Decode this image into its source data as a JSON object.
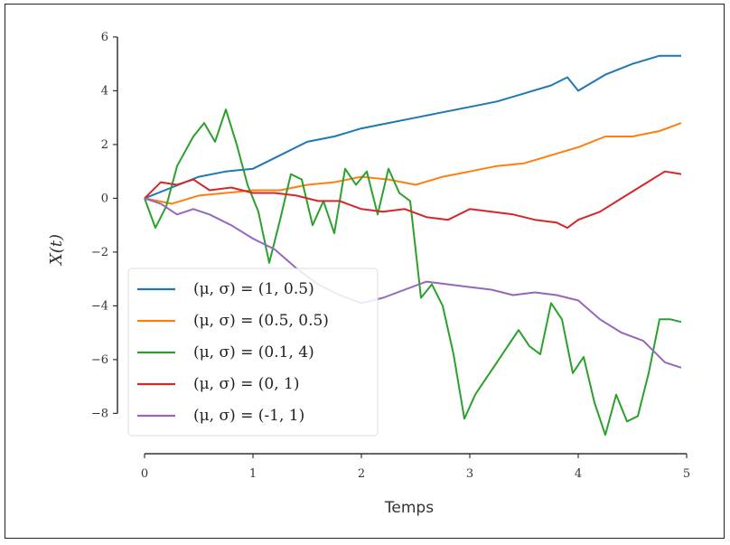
{
  "chart_data": {
    "type": "line",
    "title": "",
    "xlabel": "Temps",
    "ylabel": "X(t)",
    "xlim": [
      -0.25,
      5.15
    ],
    "ylim": [
      -9.5,
      6.3
    ],
    "xticks": [
      0,
      1,
      2,
      3,
      4,
      5
    ],
    "xtick_labels": [
      "0",
      "1",
      "2",
      "3",
      "4",
      "5"
    ],
    "yticks": [
      6,
      4,
      2,
      0,
      -2,
      -4,
      -6,
      -8
    ],
    "ytick_labels": [
      "6",
      "4",
      "2",
      "0",
      "−2",
      "−4",
      "−6",
      "−8"
    ],
    "grid": false,
    "legend_position": "lower-left",
    "series": [
      {
        "name": "(μ, σ) = (1, 0.5)",
        "color": "#1f77b4",
        "x": [
          0,
          0.25,
          0.5,
          0.75,
          1.0,
          1.25,
          1.5,
          1.75,
          2.0,
          2.25,
          2.5,
          2.75,
          3.0,
          3.25,
          3.5,
          3.75,
          3.9,
          4.0,
          4.25,
          4.5,
          4.75,
          4.95
        ],
        "y": [
          0,
          0.4,
          0.8,
          1.0,
          1.1,
          1.6,
          2.1,
          2.3,
          2.6,
          2.8,
          3.0,
          3.2,
          3.4,
          3.6,
          3.9,
          4.2,
          4.5,
          4.0,
          4.6,
          5.0,
          5.3,
          5.3
        ]
      },
      {
        "name": "(μ, σ) = (0.5, 0.5)",
        "color": "#ff7f0e",
        "x": [
          0,
          0.25,
          0.5,
          0.75,
          1.0,
          1.25,
          1.5,
          1.75,
          2.0,
          2.25,
          2.5,
          2.75,
          3.0,
          3.25,
          3.5,
          3.75,
          4.0,
          4.25,
          4.5,
          4.75,
          4.95
        ],
        "y": [
          0,
          -0.2,
          0.1,
          0.2,
          0.3,
          0.3,
          0.5,
          0.6,
          0.8,
          0.7,
          0.5,
          0.8,
          1.0,
          1.2,
          1.3,
          1.6,
          1.9,
          2.3,
          2.3,
          2.5,
          2.8
        ]
      },
      {
        "name": "(μ, σ) = (0.1, 4)",
        "color": "#2ca02c",
        "x": [
          0,
          0.1,
          0.2,
          0.3,
          0.45,
          0.55,
          0.65,
          0.75,
          0.85,
          0.95,
          1.05,
          1.15,
          1.25,
          1.35,
          1.45,
          1.55,
          1.65,
          1.75,
          1.85,
          1.95,
          2.05,
          2.15,
          2.25,
          2.35,
          2.45,
          2.55,
          2.65,
          2.75,
          2.85,
          2.95,
          3.05,
          3.15,
          3.25,
          3.35,
          3.45,
          3.55,
          3.65,
          3.75,
          3.85,
          3.95,
          4.05,
          4.15,
          4.25,
          4.35,
          4.45,
          4.55,
          4.65,
          4.75,
          4.85,
          4.95
        ],
        "y": [
          0,
          -1.1,
          -0.3,
          1.2,
          2.3,
          2.8,
          2.1,
          3.3,
          2.0,
          0.5,
          -0.5,
          -2.4,
          -0.8,
          0.9,
          0.7,
          -1.0,
          -0.1,
          -1.3,
          1.1,
          0.5,
          1.0,
          -0.6,
          1.1,
          0.2,
          -0.1,
          -3.7,
          -3.2,
          -4.0,
          -5.8,
          -8.2,
          -7.3,
          -6.7,
          -6.1,
          -5.5,
          -4.9,
          -5.5,
          -5.8,
          -3.9,
          -4.5,
          -6.5,
          -5.9,
          -7.6,
          -8.8,
          -7.3,
          -8.3,
          -8.1,
          -6.5,
          -4.5,
          -4.5,
          -4.6
        ]
      },
      {
        "name": "(μ, σ) = (0, 1)",
        "color": "#d62728",
        "x": [
          0,
          0.15,
          0.3,
          0.45,
          0.6,
          0.8,
          1.0,
          1.2,
          1.4,
          1.6,
          1.8,
          2.0,
          2.2,
          2.4,
          2.6,
          2.8,
          3.0,
          3.2,
          3.4,
          3.6,
          3.8,
          3.9,
          4.0,
          4.2,
          4.4,
          4.6,
          4.8,
          4.95
        ],
        "y": [
          0,
          0.6,
          0.5,
          0.7,
          0.3,
          0.4,
          0.2,
          0.2,
          0.1,
          -0.1,
          -0.1,
          -0.4,
          -0.5,
          -0.4,
          -0.7,
          -0.8,
          -0.4,
          -0.5,
          -0.6,
          -0.8,
          -0.9,
          -1.1,
          -0.8,
          -0.5,
          0.0,
          0.5,
          1.0,
          0.9
        ]
      },
      {
        "name": "(μ, σ) = (-1, 1)",
        "color": "#9467bd",
        "x": [
          0,
          0.15,
          0.3,
          0.45,
          0.6,
          0.8,
          1.0,
          1.2,
          1.4,
          1.6,
          1.8,
          2.0,
          2.2,
          2.4,
          2.6,
          2.8,
          3.0,
          3.2,
          3.4,
          3.6,
          3.8,
          4.0,
          4.2,
          4.4,
          4.6,
          4.8,
          4.95
        ],
        "y": [
          0,
          -0.2,
          -0.6,
          -0.4,
          -0.6,
          -1.0,
          -1.5,
          -1.9,
          -2.6,
          -3.2,
          -3.6,
          -3.9,
          -3.7,
          -3.4,
          -3.1,
          -3.2,
          -3.3,
          -3.4,
          -3.6,
          -3.5,
          -3.6,
          -3.8,
          -4.5,
          -5.0,
          -5.3,
          -6.1,
          -6.3
        ]
      }
    ]
  }
}
